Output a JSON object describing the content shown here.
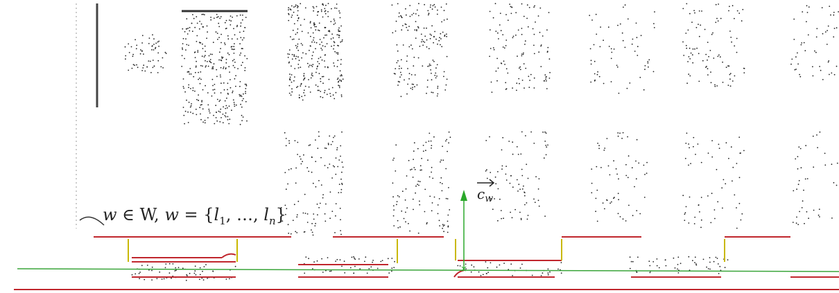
{
  "set_label": {
    "parts": [
      "w",
      " ∈ W, ",
      "w",
      " = {",
      "l",
      "1",
      ", …, ",
      "l",
      "n",
      "}"
    ]
  },
  "vector_label": {
    "base": "c",
    "sub": "w"
  }
}
